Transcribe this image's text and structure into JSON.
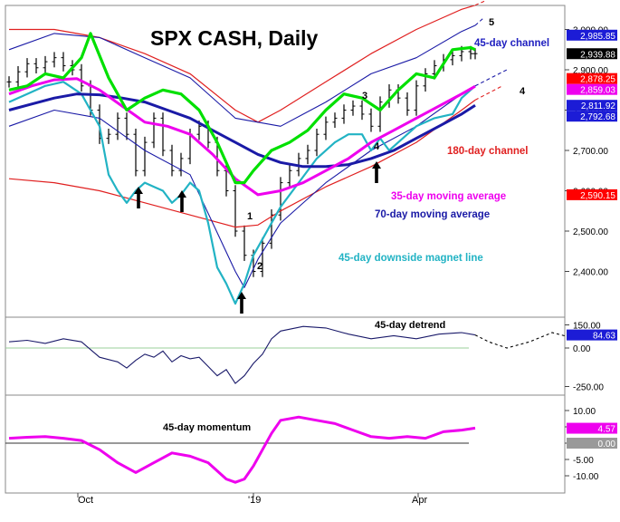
{
  "chart_data": [
    {
      "type": "line",
      "panel": "price",
      "title": "SPX CASH, Daily",
      "y_ticks": [
        2400,
        2500,
        2600,
        2700,
        2800,
        2900,
        3000
      ],
      "y_tick_labels": [
        "2,400.00",
        "2,500.00",
        "2,600.00",
        "2,700.00",
        "2,800.00",
        "2,900.00",
        "3,000.00"
      ],
      "ylim": [
        2320,
        3030
      ],
      "x_tick_labels": [
        "Oct",
        "'19",
        "Apr"
      ],
      "grid": false,
      "price_tags": [
        {
          "label": "2,985.85",
          "value": 2985.85,
          "color": "#1c1cd6"
        },
        {
          "label": "2,939.88",
          "value": 2939.88,
          "color": "#000000"
        },
        {
          "label": "2,878.25",
          "value": 2878.25,
          "color": "#ff0000"
        },
        {
          "label": "2,859.03",
          "value": 2859.03,
          "color": "#ee00ee"
        },
        {
          "label": "2,811.92",
          "value": 2811.92,
          "color": "#1c1cd6"
        },
        {
          "label": "2,792.68",
          "value": 2792.68,
          "color": "#1c1cd6"
        },
        {
          "label": "2,590.15",
          "value": 2590.15,
          "color": "#ff0000"
        }
      ],
      "annotations": [
        {
          "text": "45-day channel",
          "color": "#2020c0"
        },
        {
          "text": "180-day channel",
          "color": "#e02020"
        },
        {
          "text": "35-day moving average",
          "color": "#ee00ee"
        },
        {
          "text": "70-day moving average",
          "color": "#1a1aa6"
        },
        {
          "text": "45-day downside magnet line",
          "color": "#22b3c4"
        }
      ],
      "wave_labels": [
        "1",
        "2",
        "3",
        "4",
        "4",
        "5"
      ],
      "series": [
        {
          "key": "price_close",
          "x": [
            0,
            4,
            8,
            12,
            16,
            20,
            24,
            28,
            32,
            36,
            40,
            44,
            48,
            52,
            56,
            60,
            64,
            68,
            72,
            76,
            80,
            84,
            88,
            92,
            96,
            100,
            104,
            108,
            112,
            116,
            120,
            124,
            128,
            132,
            136,
            140,
            144,
            148,
            152,
            156,
            160,
            164,
            168,
            172,
            176,
            180,
            184,
            188,
            192,
            196,
            200,
            204,
            206
          ],
          "values": [
            2870,
            2895,
            2915,
            2905,
            2920,
            2930,
            2910,
            2900,
            2860,
            2800,
            2730,
            2740,
            2780,
            2740,
            2650,
            2720,
            2780,
            2700,
            2650,
            2680,
            2740,
            2760,
            2720,
            2650,
            2600,
            2500,
            2440,
            2400,
            2470,
            2540,
            2620,
            2650,
            2680,
            2700,
            2740,
            2770,
            2780,
            2800,
            2810,
            2790,
            2760,
            2820,
            2850,
            2830,
            2800,
            2860,
            2890,
            2910,
            2925,
            2935,
            2945,
            2940,
            2940
          ]
        },
        {
          "key": "ma_35",
          "color": "#ee00ee",
          "x": [
            0,
            10,
            20,
            30,
            40,
            50,
            60,
            70,
            80,
            90,
            100,
            110,
            120,
            130,
            140,
            150,
            160,
            170,
            180,
            190,
            200,
            206
          ],
          "values": [
            2840,
            2860,
            2875,
            2878,
            2850,
            2810,
            2770,
            2760,
            2740,
            2690,
            2630,
            2590,
            2600,
            2620,
            2650,
            2680,
            2720,
            2750,
            2780,
            2810,
            2840,
            2859
          ]
        },
        {
          "key": "ma_70",
          "color": "#1a1aa6",
          "x": [
            0,
            10,
            20,
            30,
            40,
            50,
            60,
            70,
            80,
            90,
            100,
            110,
            120,
            130,
            140,
            150,
            160,
            170,
            180,
            190,
            200,
            206
          ],
          "values": [
            2800,
            2815,
            2830,
            2840,
            2838,
            2830,
            2820,
            2800,
            2780,
            2750,
            2720,
            2690,
            2670,
            2660,
            2660,
            2665,
            2680,
            2700,
            2730,
            2760,
            2790,
            2812
          ]
        },
        {
          "key": "ch45_center",
          "color": "#00e000",
          "x": [
            0,
            8,
            16,
            24,
            32,
            36,
            44,
            52,
            60,
            68,
            76,
            84,
            92,
            100,
            104,
            108,
            116,
            124,
            132,
            140,
            148,
            156,
            164,
            172,
            180,
            188,
            196,
            204,
            206
          ],
          "values": [
            2850,
            2860,
            2890,
            2880,
            2930,
            2990,
            2880,
            2800,
            2830,
            2850,
            2840,
            2800,
            2720,
            2620,
            2620,
            2650,
            2700,
            2720,
            2750,
            2800,
            2840,
            2830,
            2800,
            2850,
            2890,
            2880,
            2950,
            2955,
            2950
          ]
        },
        {
          "key": "ch45_upper",
          "color": "#1a1aa6",
          "x": [
            0,
            20,
            40,
            60,
            80,
            100,
            120,
            140,
            160,
            180,
            200,
            206
          ],
          "values": [
            2950,
            2990,
            2980,
            2930,
            2880,
            2780,
            2760,
            2820,
            2890,
            2930,
            2995,
            3010
          ]
        },
        {
          "key": "ch45_lower",
          "color": "#1a1aa6",
          "x": [
            0,
            20,
            40,
            60,
            80,
            100,
            104,
            110,
            120,
            140,
            160,
            180,
            200,
            206
          ],
          "values": [
            2760,
            2800,
            2780,
            2700,
            2640,
            2400,
            2360,
            2430,
            2520,
            2620,
            2700,
            2760,
            2840,
            2860
          ]
        },
        {
          "key": "ch180_upper",
          "color": "#e02020",
          "x": [
            0,
            20,
            40,
            60,
            80,
            100,
            110,
            120,
            140,
            160,
            180,
            200,
            206
          ],
          "values": [
            3000,
            3000,
            2980,
            2940,
            2890,
            2800,
            2770,
            2800,
            2870,
            2940,
            3000,
            3050,
            3060
          ]
        },
        {
          "key": "ch180_lower",
          "color": "#e02020",
          "x": [
            0,
            20,
            40,
            60,
            80,
            100,
            110,
            120,
            140,
            160,
            180,
            200,
            206
          ],
          "values": [
            2630,
            2620,
            2600,
            2570,
            2540,
            2510,
            2515,
            2550,
            2610,
            2660,
            2720,
            2800,
            2825
          ]
        },
        {
          "key": "magnet",
          "color": "#22b3c4",
          "x": [
            0,
            8,
            16,
            24,
            32,
            40,
            44,
            48,
            52,
            56,
            60,
            64,
            68,
            72,
            76,
            80,
            84,
            88,
            92,
            96,
            100,
            104,
            108,
            112,
            116,
            120,
            128,
            136,
            144,
            150,
            156,
            160,
            164,
            168,
            172,
            180,
            188,
            196,
            200,
            206
          ],
          "values": [
            2820,
            2840,
            2860,
            2870,
            2840,
            2760,
            2640,
            2600,
            2570,
            2600,
            2620,
            2610,
            2600,
            2570,
            2590,
            2620,
            2600,
            2520,
            2410,
            2370,
            2320,
            2370,
            2440,
            2480,
            2520,
            2560,
            2620,
            2680,
            2720,
            2740,
            2740,
            2700,
            2730,
            2700,
            2720,
            2760,
            2780,
            2790,
            2830,
            2860
          ]
        }
      ]
    },
    {
      "type": "line",
      "panel": "detrend",
      "title": "45-day detrend",
      "y_ticks": [
        150,
        0,
        -250
      ],
      "y_tick_labels": [
        "150.00",
        "0.00",
        "-250.00"
      ],
      "tags": [
        {
          "label": "84.63",
          "value": 84.63,
          "color": "#1c1cd6"
        }
      ],
      "series": [
        {
          "key": "detrend",
          "x": [
            0,
            8,
            16,
            24,
            32,
            40,
            48,
            52,
            56,
            60,
            64,
            68,
            72,
            76,
            80,
            84,
            88,
            92,
            96,
            100,
            104,
            108,
            112,
            116,
            120,
            130,
            140,
            150,
            160,
            170,
            180,
            190,
            200,
            206
          ],
          "values": [
            40,
            50,
            30,
            60,
            40,
            -60,
            -90,
            -130,
            -80,
            -40,
            -60,
            -20,
            -90,
            -50,
            -70,
            -60,
            -120,
            -180,
            -140,
            -230,
            -180,
            -100,
            -40,
            60,
            110,
            140,
            130,
            90,
            60,
            80,
            60,
            90,
            100,
            85
          ]
        },
        {
          "key": "detrend_forecast",
          "x": [
            206,
            212,
            220,
            230,
            240,
            248
          ],
          "values": [
            85,
            40,
            0,
            40,
            100,
            70
          ]
        }
      ]
    },
    {
      "type": "line",
      "panel": "momentum",
      "title": "45-day momentum",
      "y_ticks": [
        10,
        5,
        0,
        -5,
        -10
      ],
      "y_tick_labels": [
        "10.00",
        "5.00",
        "0.00",
        "-5.00",
        "-10.00"
      ],
      "tags": [
        {
          "label": "4.57",
          "value": 4.57,
          "color": "#ee00ee"
        },
        {
          "label": "0.00",
          "value": 0,
          "color": "#999999"
        }
      ],
      "series": [
        {
          "key": "momentum",
          "color": "#ee00ee",
          "x": [
            0,
            8,
            16,
            24,
            32,
            40,
            48,
            56,
            64,
            72,
            80,
            88,
            96,
            100,
            104,
            108,
            112,
            116,
            120,
            128,
            136,
            144,
            152,
            160,
            168,
            176,
            184,
            192,
            200,
            206
          ],
          "values": [
            1.5,
            1.8,
            2.0,
            1.5,
            0.8,
            -2,
            -6,
            -9,
            -6,
            -3,
            -4,
            -6,
            -11,
            -12,
            -11,
            -7,
            -2,
            3,
            7,
            8,
            7,
            6,
            4,
            2,
            1.5,
            2,
            1.5,
            3.5,
            4,
            4.6
          ]
        }
      ]
    }
  ]
}
